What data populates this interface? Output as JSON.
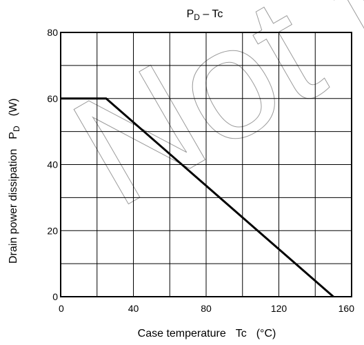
{
  "chart_data": {
    "type": "line",
    "title": {
      "main": "P",
      "sub": "D",
      "rest": " – Tc"
    },
    "xlabel": {
      "text": "Case temperature",
      "symbol": "Tc",
      "unit": "(°C)"
    },
    "ylabel": {
      "text": "Drain power dissipation",
      "symbol": "P",
      "sub": "D",
      "unit": "(W)"
    },
    "xlim": [
      0,
      160
    ],
    "ylim": [
      0,
      80
    ],
    "x_ticks": [
      0,
      40,
      80,
      120,
      160
    ],
    "y_ticks": [
      0,
      20,
      40,
      60,
      80
    ],
    "x_minor": 20,
    "y_minor": 10,
    "grid": true,
    "series": [
      {
        "x": [
          0,
          25,
          150
        ],
        "y": [
          60,
          60,
          0
        ]
      }
    ],
    "watermark": "Not for"
  }
}
